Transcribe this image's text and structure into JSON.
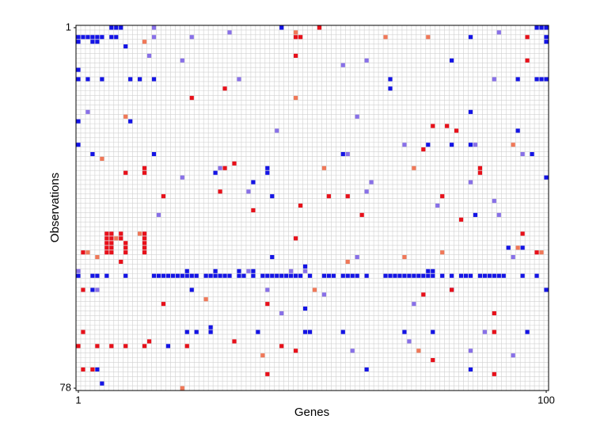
{
  "chart_data": {
    "type": "heatmap",
    "xlabel": "Genes",
    "ylabel": "Observations",
    "xlim": [
      1,
      100
    ],
    "ylim": [
      1,
      78
    ],
    "xticks": [
      1,
      100
    ],
    "yticks": [
      1,
      78
    ],
    "grid": true,
    "series": [
      {
        "color": "#1414e6",
        "cells": [
          [
            8,
            1
          ],
          [
            9,
            1
          ],
          [
            10,
            1
          ],
          [
            44,
            1
          ],
          [
            98,
            1
          ],
          [
            99,
            1
          ],
          [
            100,
            1
          ],
          [
            1,
            3
          ],
          [
            2,
            3
          ],
          [
            3,
            3
          ],
          [
            4,
            3
          ],
          [
            5,
            3
          ],
          [
            6,
            3
          ],
          [
            8,
            3
          ],
          [
            9,
            3
          ],
          [
            84,
            3
          ],
          [
            100,
            3
          ],
          [
            1,
            4
          ],
          [
            4,
            4
          ],
          [
            5,
            4
          ],
          [
            100,
            4
          ],
          [
            11,
            5
          ],
          [
            80,
            8
          ],
          [
            1,
            10
          ],
          [
            1,
            12
          ],
          [
            3,
            12
          ],
          [
            6,
            12
          ],
          [
            12,
            12
          ],
          [
            14,
            12
          ],
          [
            17,
            12
          ],
          [
            67,
            12
          ],
          [
            94,
            12
          ],
          [
            98,
            12
          ],
          [
            99,
            12
          ],
          [
            100,
            12
          ],
          [
            67,
            14
          ],
          [
            84,
            19
          ],
          [
            1,
            21
          ],
          [
            12,
            21
          ],
          [
            94,
            23
          ],
          [
            1,
            26
          ],
          [
            75,
            26
          ],
          [
            80,
            26
          ],
          [
            84,
            26
          ],
          [
            4,
            28
          ],
          [
            17,
            28
          ],
          [
            57,
            28
          ],
          [
            97,
            28
          ],
          [
            41,
            31
          ],
          [
            30,
            32
          ],
          [
            41,
            32
          ],
          [
            38,
            34
          ],
          [
            100,
            33
          ],
          [
            42,
            37
          ],
          [
            85,
            41
          ],
          [
            92,
            48
          ],
          [
            95,
            48
          ],
          [
            42,
            50
          ],
          [
            49,
            52
          ],
          [
            24,
            53
          ],
          [
            30,
            53
          ],
          [
            35,
            53
          ],
          [
            38,
            53
          ],
          [
            75,
            53
          ],
          [
            76,
            53
          ],
          [
            1,
            54
          ],
          [
            4,
            54
          ],
          [
            5,
            54
          ],
          [
            7,
            54
          ],
          [
            11,
            54
          ],
          [
            17,
            54
          ],
          [
            18,
            54
          ],
          [
            19,
            54
          ],
          [
            20,
            54
          ],
          [
            21,
            54
          ],
          [
            22,
            54
          ],
          [
            23,
            54
          ],
          [
            24,
            54
          ],
          [
            25,
            54
          ],
          [
            26,
            54
          ],
          [
            28,
            54
          ],
          [
            29,
            54
          ],
          [
            30,
            54
          ],
          [
            31,
            54
          ],
          [
            32,
            54
          ],
          [
            33,
            54
          ],
          [
            35,
            54
          ],
          [
            36,
            54
          ],
          [
            38,
            54
          ],
          [
            40,
            54
          ],
          [
            41,
            54
          ],
          [
            42,
            54
          ],
          [
            43,
            54
          ],
          [
            44,
            54
          ],
          [
            45,
            54
          ],
          [
            46,
            54
          ],
          [
            47,
            54
          ],
          [
            48,
            54
          ],
          [
            50,
            54
          ],
          [
            53,
            54
          ],
          [
            54,
            54
          ],
          [
            55,
            54
          ],
          [
            57,
            54
          ],
          [
            58,
            54
          ],
          [
            59,
            54
          ],
          [
            60,
            54
          ],
          [
            62,
            54
          ],
          [
            66,
            54
          ],
          [
            67,
            54
          ],
          [
            68,
            54
          ],
          [
            69,
            54
          ],
          [
            70,
            54
          ],
          [
            71,
            54
          ],
          [
            72,
            54
          ],
          [
            73,
            54
          ],
          [
            74,
            54
          ],
          [
            75,
            54
          ],
          [
            76,
            54
          ],
          [
            78,
            54
          ],
          [
            80,
            54
          ],
          [
            82,
            54
          ],
          [
            83,
            54
          ],
          [
            84,
            54
          ],
          [
            86,
            54
          ],
          [
            87,
            54
          ],
          [
            88,
            54
          ],
          [
            89,
            54
          ],
          [
            90,
            54
          ],
          [
            91,
            54
          ],
          [
            95,
            54
          ],
          [
            98,
            54
          ],
          [
            4,
            57
          ],
          [
            25,
            57
          ],
          [
            80,
            57
          ],
          [
            100,
            57
          ],
          [
            49,
            61
          ],
          [
            29,
            65
          ],
          [
            24,
            66
          ],
          [
            26,
            66
          ],
          [
            29,
            66
          ],
          [
            39,
            66
          ],
          [
            49,
            66
          ],
          [
            50,
            66
          ],
          [
            57,
            66
          ],
          [
            70,
            66
          ],
          [
            76,
            66
          ],
          [
            96,
            66
          ],
          [
            20,
            69
          ],
          [
            5,
            74
          ],
          [
            62,
            74
          ],
          [
            84,
            74
          ],
          [
            6,
            77
          ]
        ]
      },
      {
        "color": "#e8101a",
        "cells": [
          [
            52,
            1
          ],
          [
            47,
            3
          ],
          [
            48,
            3
          ],
          [
            96,
            3
          ],
          [
            47,
            7
          ],
          [
            96,
            8
          ],
          [
            32,
            14
          ],
          [
            25,
            16
          ],
          [
            76,
            22
          ],
          [
            79,
            22
          ],
          [
            81,
            23
          ],
          [
            74,
            27
          ],
          [
            34,
            30
          ],
          [
            32,
            31
          ],
          [
            15,
            31
          ],
          [
            11,
            32
          ],
          [
            15,
            32
          ],
          [
            86,
            31
          ],
          [
            86,
            32
          ],
          [
            31,
            36
          ],
          [
            19,
            37
          ],
          [
            54,
            37
          ],
          [
            58,
            37
          ],
          [
            78,
            37
          ],
          [
            48,
            39
          ],
          [
            38,
            40
          ],
          [
            61,
            41
          ],
          [
            82,
            42
          ],
          [
            95,
            45
          ],
          [
            7,
            45
          ],
          [
            8,
            45
          ],
          [
            7,
            46
          ],
          [
            8,
            46
          ],
          [
            7,
            47
          ],
          [
            8,
            47
          ],
          [
            7,
            48
          ],
          [
            8,
            48
          ],
          [
            7,
            49
          ],
          [
            8,
            49
          ],
          [
            10,
            45
          ],
          [
            10,
            46
          ],
          [
            11,
            47
          ],
          [
            11,
            48
          ],
          [
            11,
            49
          ],
          [
            15,
            45
          ],
          [
            15,
            46
          ],
          [
            15,
            47
          ],
          [
            15,
            48
          ],
          [
            15,
            49
          ],
          [
            47,
            46
          ],
          [
            2,
            49
          ],
          [
            10,
            51
          ],
          [
            98,
            49
          ],
          [
            2,
            57
          ],
          [
            19,
            60
          ],
          [
            41,
            60
          ],
          [
            89,
            62
          ],
          [
            89,
            66
          ],
          [
            2,
            66
          ],
          [
            1,
            69
          ],
          [
            5,
            69
          ],
          [
            8,
            69
          ],
          [
            11,
            69
          ],
          [
            15,
            69
          ],
          [
            16,
            68
          ],
          [
            24,
            69
          ],
          [
            34,
            68
          ],
          [
            44,
            69
          ],
          [
            47,
            70
          ],
          [
            76,
            72
          ],
          [
            2,
            74
          ],
          [
            4,
            74
          ],
          [
            41,
            75
          ],
          [
            89,
            75
          ],
          [
            80,
            57
          ],
          [
            74,
            58
          ]
        ]
      },
      {
        "color": "#f07858",
        "cells": [
          [
            47,
            2
          ],
          [
            66,
            3
          ],
          [
            75,
            3
          ],
          [
            15,
            4
          ],
          [
            47,
            16
          ],
          [
            11,
            20
          ],
          [
            6,
            29
          ],
          [
            53,
            31
          ],
          [
            72,
            31
          ],
          [
            93,
            26
          ],
          [
            14,
            45
          ],
          [
            5,
            50
          ],
          [
            3,
            49
          ],
          [
            70,
            50
          ],
          [
            58,
            51
          ],
          [
            78,
            49
          ],
          [
            94,
            48
          ],
          [
            28,
            59
          ],
          [
            51,
            57
          ],
          [
            40,
            71
          ],
          [
            23,
            78
          ],
          [
            73,
            70
          ],
          [
            99,
            49
          ],
          [
            9,
            46
          ]
        ]
      },
      {
        "color": "#8870e8",
        "cells": [
          [
            17,
            1
          ],
          [
            33,
            2
          ],
          [
            17,
            3
          ],
          [
            25,
            3
          ],
          [
            90,
            2
          ],
          [
            16,
            7
          ],
          [
            23,
            8
          ],
          [
            57,
            9
          ],
          [
            62,
            8
          ],
          [
            35,
            12
          ],
          [
            89,
            12
          ],
          [
            3,
            19
          ],
          [
            60,
            20
          ],
          [
            43,
            23
          ],
          [
            70,
            26
          ],
          [
            85,
            26
          ],
          [
            58,
            28
          ],
          [
            95,
            28
          ],
          [
            31,
            31
          ],
          [
            23,
            33
          ],
          [
            63,
            34
          ],
          [
            84,
            34
          ],
          [
            62,
            36
          ],
          [
            37,
            36
          ],
          [
            89,
            38
          ],
          [
            77,
            39
          ],
          [
            18,
            41
          ],
          [
            90,
            41
          ],
          [
            93,
            50
          ],
          [
            60,
            50
          ],
          [
            1,
            53
          ],
          [
            49,
            53
          ],
          [
            5,
            57
          ],
          [
            53,
            58
          ],
          [
            41,
            57
          ],
          [
            72,
            60
          ],
          [
            44,
            62
          ],
          [
            59,
            70
          ],
          [
            87,
            66
          ],
          [
            84,
            70
          ],
          [
            71,
            68
          ],
          [
            93,
            71
          ],
          [
            37,
            53
          ],
          [
            46,
            53
          ]
        ]
      }
    ]
  }
}
